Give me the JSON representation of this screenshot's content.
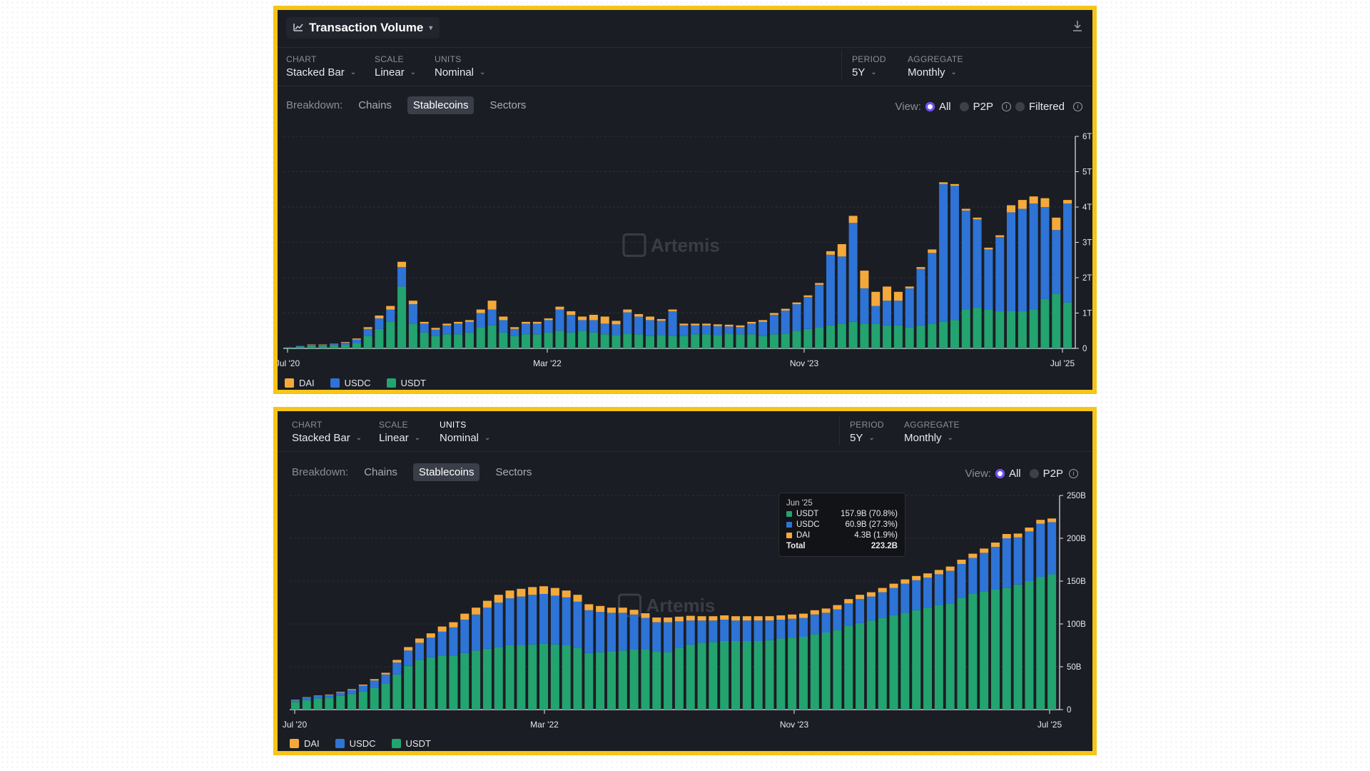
{
  "colors": {
    "dai": "#f5a93b",
    "usdc": "#2e73d6",
    "usdt": "#23a36f",
    "accent": "#6c4df6",
    "frame": "#f5c518"
  },
  "top": {
    "title": "Transaction Volume",
    "title_icon": "line-chart-icon",
    "download_icon": "download-icon",
    "controls": {
      "chart": {
        "label": "CHART",
        "value": "Stacked Bar"
      },
      "scale": {
        "label": "SCALE",
        "value": "Linear"
      },
      "units": {
        "label": "UNITS",
        "value": "Nominal"
      },
      "period": {
        "label": "PERIOD",
        "value": "5Y"
      },
      "aggregate": {
        "label": "AGGREGATE",
        "value": "Monthly"
      }
    },
    "breakdown": {
      "label": "Breakdown:",
      "items": [
        "Chains",
        "Stablecoins",
        "Sectors"
      ],
      "active": "Stablecoins"
    },
    "view": {
      "label": "View:",
      "options": [
        "All",
        "P2P",
        "Filtered"
      ],
      "selected": "All"
    },
    "watermark": "Artemis",
    "legend": [
      "DAI",
      "USDC",
      "USDT"
    ]
  },
  "bottom": {
    "controls": {
      "chart": {
        "label": "CHART",
        "value": "Stacked Bar"
      },
      "scale": {
        "label": "SCALE",
        "value": "Linear"
      },
      "units": {
        "label": "UNITS",
        "value": "Nominal"
      },
      "period": {
        "label": "PERIOD",
        "value": "5Y"
      },
      "aggregate": {
        "label": "AGGREGATE",
        "value": "Monthly"
      }
    },
    "breakdown": {
      "label": "Breakdown:",
      "items": [
        "Chains",
        "Stablecoins",
        "Sectors"
      ],
      "active": "Stablecoins"
    },
    "view": {
      "label": "View:",
      "options": [
        "All",
        "P2P"
      ],
      "selected": "All"
    },
    "watermark": "Artemis",
    "legend": [
      "DAI",
      "USDC",
      "USDT"
    ],
    "tooltip": {
      "title": "Jun '25",
      "rows": [
        {
          "name": "USDT",
          "value": "157.9B (70.8%)"
        },
        {
          "name": "USDC",
          "value": "60.9B (27.3%)"
        },
        {
          "name": "DAI",
          "value": "4.3B (1.9%)"
        }
      ],
      "total_label": "Total",
      "total_value": "223.2B"
    }
  },
  "chart_data": [
    {
      "type": "bar",
      "stacked": true,
      "x_start": "Jul '20",
      "x_end": "Jul '25",
      "xtick_labels": [
        "Jul '20",
        "Mar '22",
        "Nov '23",
        "Jul '25"
      ],
      "ytick_labels": [
        "0",
        "1T",
        "2T",
        "3T",
        "4T",
        "5T",
        "6T"
      ],
      "ylim": [
        0,
        6
      ],
      "y_unit": "T",
      "grid": true,
      "legend_position": "bottom-left",
      "series": [
        {
          "name": "USDT",
          "values": [
            0.03,
            0.05,
            0.07,
            0.07,
            0.08,
            0.1,
            0.15,
            0.35,
            0.55,
            0.75,
            1.75,
            0.7,
            0.45,
            0.35,
            0.4,
            0.4,
            0.45,
            0.6,
            0.65,
            0.45,
            0.35,
            0.4,
            0.4,
            0.45,
            0.5,
            0.45,
            0.5,
            0.45,
            0.4,
            0.38,
            0.42,
            0.4,
            0.35,
            0.38,
            0.35,
            0.35,
            0.4,
            0.4,
            0.38,
            0.42,
            0.4,
            0.4,
            0.35,
            0.4,
            0.42,
            0.5,
            0.55,
            0.6,
            0.65,
            0.7,
            0.75,
            0.7,
            0.7,
            0.65,
            0.65,
            0.6,
            0.65,
            0.7,
            0.75,
            0.8,
            1.1,
            1.15,
            1.1,
            1.05,
            1.05,
            1.05,
            1.1,
            1.4,
            1.55,
            1.3
          ]
        },
        {
          "name": "USDC",
          "values": [
            0.0,
            0.02,
            0.03,
            0.03,
            0.04,
            0.06,
            0.1,
            0.2,
            0.3,
            0.35,
            0.55,
            0.55,
            0.25,
            0.18,
            0.25,
            0.3,
            0.3,
            0.4,
            0.45,
            0.35,
            0.2,
            0.3,
            0.3,
            0.35,
            0.6,
            0.5,
            0.3,
            0.35,
            0.3,
            0.3,
            0.6,
            0.5,
            0.45,
            0.4,
            0.7,
            0.3,
            0.25,
            0.25,
            0.25,
            0.2,
            0.2,
            0.3,
            0.4,
            0.55,
            0.65,
            0.75,
            0.9,
            1.2,
            2.0,
            1.9,
            2.8,
            1.0,
            0.5,
            0.7,
            0.7,
            1.1,
            1.6,
            2.0,
            3.9,
            3.8,
            2.8,
            2.5,
            1.7,
            2.1,
            2.8,
            2.9,
            3.0,
            2.6,
            1.8,
            2.8
          ]
        },
        {
          "name": "DAI",
          "values": [
            0.0,
            0.0,
            0.01,
            0.01,
            0.01,
            0.02,
            0.03,
            0.05,
            0.08,
            0.1,
            0.15,
            0.1,
            0.05,
            0.05,
            0.05,
            0.05,
            0.05,
            0.1,
            0.25,
            0.1,
            0.05,
            0.05,
            0.05,
            0.05,
            0.08,
            0.1,
            0.1,
            0.15,
            0.2,
            0.1,
            0.08,
            0.07,
            0.1,
            0.05,
            0.05,
            0.05,
            0.05,
            0.05,
            0.05,
            0.05,
            0.05,
            0.05,
            0.05,
            0.05,
            0.05,
            0.05,
            0.05,
            0.05,
            0.1,
            0.35,
            0.2,
            0.5,
            0.4,
            0.4,
            0.25,
            0.05,
            0.05,
            0.1,
            0.05,
            0.05,
            0.05,
            0.05,
            0.05,
            0.05,
            0.2,
            0.25,
            0.2,
            0.25,
            0.35,
            0.1
          ]
        }
      ]
    },
    {
      "type": "bar",
      "stacked": true,
      "x_start": "Jul '20",
      "x_end": "Jul '25",
      "xtick_labels": [
        "Jul '20",
        "Mar '22",
        "Nov '23",
        "Jul '25"
      ],
      "ytick_labels": [
        "0",
        "50B",
        "100B",
        "150B",
        "200B",
        "250B"
      ],
      "ylim": [
        0,
        250
      ],
      "y_unit": "B",
      "grid": true,
      "legend_position": "bottom-left",
      "series": [
        {
          "name": "USDT",
          "values": [
            9,
            11,
            13,
            14,
            16,
            18,
            21,
            25,
            30,
            41,
            51,
            58,
            61,
            63,
            63,
            66,
            69,
            71,
            73,
            75,
            75,
            76,
            77,
            76,
            75,
            72,
            66,
            67,
            68,
            69,
            70,
            70,
            68,
            67,
            72,
            76,
            78,
            79,
            80,
            80,
            80,
            80,
            81,
            83,
            84,
            85,
            88,
            90,
            93,
            98,
            101,
            104,
            107,
            110,
            113,
            116,
            119,
            122,
            124,
            130,
            135,
            138,
            140,
            142,
            146,
            150,
            155,
            157.9
          ]
        },
        {
          "name": "USDC",
          "values": [
            2,
            3,
            3,
            3,
            4,
            5,
            7,
            9,
            11,
            14,
            18,
            20,
            23,
            28,
            33,
            39,
            42,
            48,
            52,
            55,
            57,
            58,
            58,
            57,
            56,
            54,
            50,
            47,
            45,
            44,
            41,
            37,
            34,
            35,
            31,
            28,
            26,
            25,
            25,
            24,
            24,
            24,
            23,
            22,
            22,
            22,
            23,
            23,
            24,
            26,
            28,
            28,
            30,
            32,
            34,
            35,
            35,
            36,
            38,
            40,
            42,
            45,
            50,
            58,
            55,
            58,
            62,
            60.9
          ]
        },
        {
          "name": "DAI",
          "values": [
            0.5,
            0.5,
            0.5,
            0.6,
            0.7,
            0.9,
            1.2,
            1.6,
            2,
            3,
            4,
            5,
            5,
            6,
            6,
            7,
            8,
            8,
            9,
            9,
            9,
            9,
            9,
            9,
            8,
            8,
            7,
            7,
            6,
            6,
            5.5,
            5.5,
            5.5,
            5.5,
            5.5,
            5.5,
            5,
            5,
            5,
            5,
            5,
            5,
            5,
            5,
            5,
            5,
            5,
            5,
            5,
            5,
            5,
            5,
            5,
            5,
            5,
            5,
            5,
            5,
            5,
            5,
            5,
            5,
            5,
            5,
            4.5,
            4.5,
            4.5,
            4.3
          ]
        }
      ]
    }
  ]
}
